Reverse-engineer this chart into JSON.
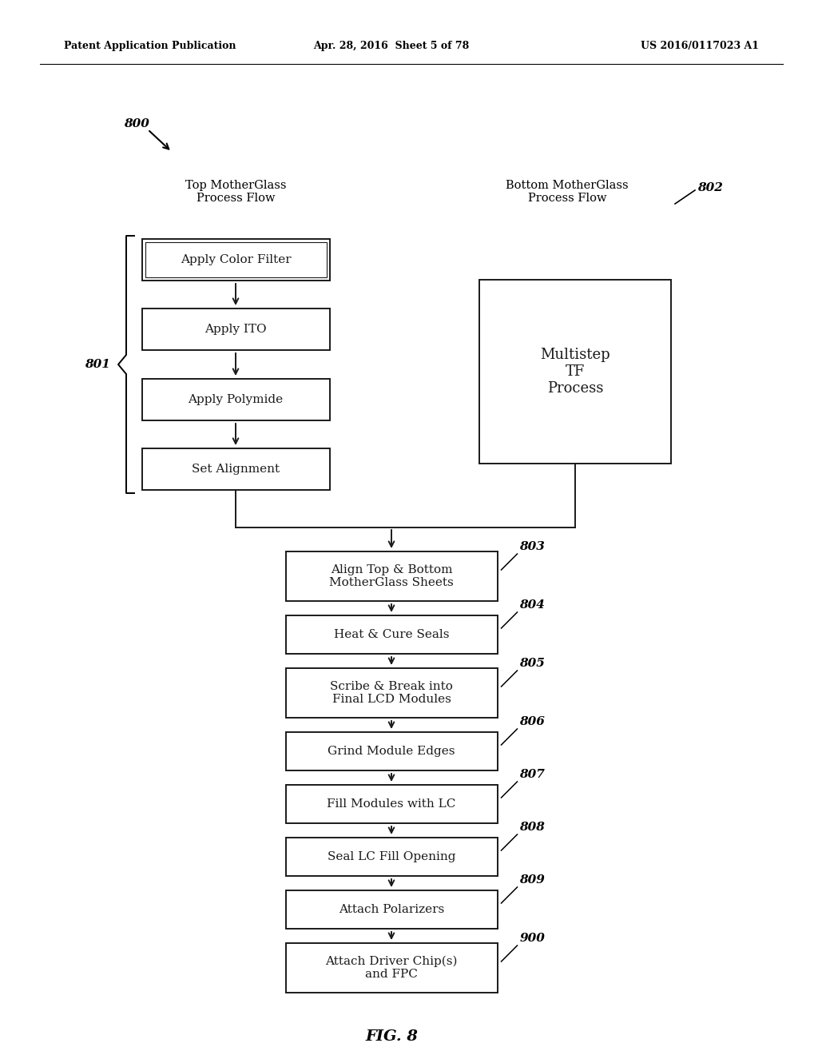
{
  "title": "FIG. 8",
  "header_left": "Patent Application Publication",
  "header_mid": "Apr. 28, 2016  Sheet 5 of 78",
  "header_right": "US 2016/0117023 A1",
  "fig_label": "800",
  "top_label": "Top MotherGlass\nProcess Flow",
  "top_brace_label": "801",
  "bottom_label": "Bottom MotherGlass\nProcess Flow",
  "bottom_brace_label": "802",
  "left_boxes": [
    "Apply Color Filter",
    "Apply ITO",
    "Apply Polymide",
    "Set Alignment"
  ],
  "right_box": "Multistep\nTF\nProcess",
  "main_boxes": [
    {
      "text": "Align Top & Bottom\nMotherGlass Sheets",
      "label": "803"
    },
    {
      "text": "Heat & Cure Seals",
      "label": "804"
    },
    {
      "text": "Scribe & Break into\nFinal LCD Modules",
      "label": "805"
    },
    {
      "text": "Grind Module Edges",
      "label": "806"
    },
    {
      "text": "Fill Modules with LC",
      "label": "807"
    },
    {
      "text": "Seal LC Fill Opening",
      "label": "808"
    },
    {
      "text": "Attach Polarizers",
      "label": "809"
    },
    {
      "text": "Attach Driver Chip(s)\nand FPC",
      "label": "900"
    }
  ],
  "bg_color": "#ffffff",
  "box_edge_color": "#1a1a1a",
  "text_color": "#1a1a1a",
  "arrow_color": "#1a1a1a"
}
